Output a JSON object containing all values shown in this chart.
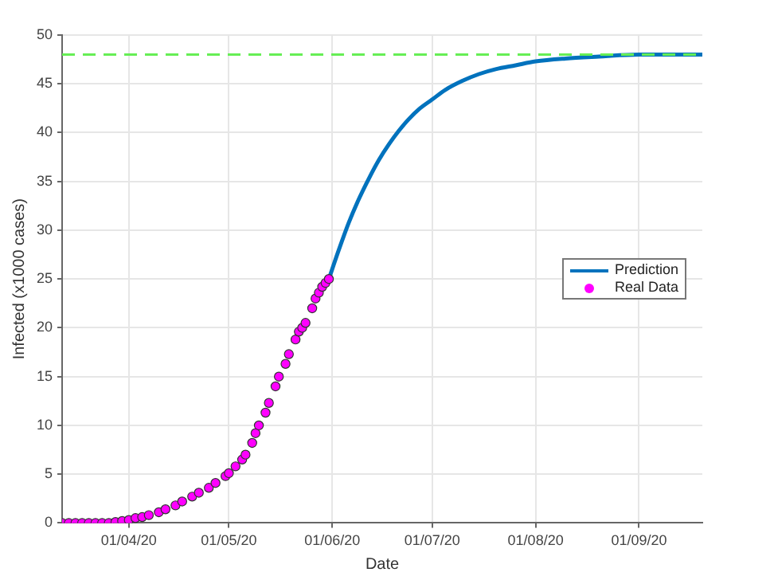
{
  "chart_data": {
    "type": "line",
    "xlabel": "Date",
    "ylabel": "Infected (x1000 cases)",
    "xlim": [
      "2020-03-12",
      "2020-09-20"
    ],
    "xticks": [
      {
        "value": "2020-04-01",
        "label": "01/04/20"
      },
      {
        "value": "2020-05-01",
        "label": "01/05/20"
      },
      {
        "value": "2020-06-01",
        "label": "01/06/20"
      },
      {
        "value": "2020-07-01",
        "label": "01/07/20"
      },
      {
        "value": "2020-08-01",
        "label": "01/08/20"
      },
      {
        "value": "2020-09-01",
        "label": "01/09/20"
      }
    ],
    "ylim": [
      0,
      50
    ],
    "yticks": [
      0,
      5,
      10,
      15,
      20,
      25,
      30,
      35,
      40,
      45,
      50
    ],
    "grid": true,
    "legend": "right",
    "ref_lines": [
      {
        "axis": "y",
        "value": 48,
        "color": "#66ee55",
        "line_style": "dashed"
      }
    ],
    "series": [
      {
        "name": "Prediction",
        "color": "#0072bd",
        "marker": "none",
        "x": [
          "2020-05-31",
          "2020-06-03",
          "2020-06-06",
          "2020-06-09",
          "2020-06-12",
          "2020-06-15",
          "2020-06-18",
          "2020-06-21",
          "2020-06-24",
          "2020-06-27",
          "2020-07-01",
          "2020-07-05",
          "2020-07-10",
          "2020-07-15",
          "2020-07-20",
          "2020-07-26",
          "2020-08-01",
          "2020-08-10",
          "2020-08-20",
          "2020-09-01",
          "2020-09-20"
        ],
        "values": [
          25,
          28,
          30.8,
          33.2,
          35.3,
          37.2,
          38.8,
          40.2,
          41.4,
          42.4,
          43.4,
          44.4,
          45.3,
          46,
          46.5,
          46.9,
          47.3,
          47.6,
          47.8,
          48,
          48
        ]
      },
      {
        "name": "Real Data",
        "type": "scatter",
        "color": "#ff00ff",
        "marker": "circle",
        "x": [
          "2020-03-12",
          "2020-03-14",
          "2020-03-16",
          "2020-03-18",
          "2020-03-20",
          "2020-03-22",
          "2020-03-24",
          "2020-03-26",
          "2020-03-28",
          "2020-03-30",
          "2020-04-01",
          "2020-04-03",
          "2020-04-05",
          "2020-04-07",
          "2020-04-10",
          "2020-04-12",
          "2020-04-15",
          "2020-04-17",
          "2020-04-20",
          "2020-04-22",
          "2020-04-25",
          "2020-04-27",
          "2020-04-30",
          "2020-05-01",
          "2020-05-03",
          "2020-05-05",
          "2020-05-06",
          "2020-05-08",
          "2020-05-09",
          "2020-05-10",
          "2020-05-12",
          "2020-05-13",
          "2020-05-15",
          "2020-05-16",
          "2020-05-18",
          "2020-05-19",
          "2020-05-21",
          "2020-05-22",
          "2020-05-23",
          "2020-05-24",
          "2020-05-26",
          "2020-05-27",
          "2020-05-28",
          "2020-05-29",
          "2020-05-30",
          "2020-05-31"
        ],
        "values": [
          0,
          0,
          0,
          0,
          0,
          0,
          0,
          0,
          0.1,
          0.2,
          0.3,
          0.5,
          0.6,
          0.8,
          1.1,
          1.4,
          1.8,
          2.2,
          2.7,
          3.1,
          3.6,
          4.1,
          4.8,
          5.1,
          5.8,
          6.5,
          7.0,
          8.2,
          9.2,
          10,
          11.3,
          12.3,
          14.0,
          15.0,
          16.3,
          17.3,
          18.8,
          19.6,
          20.0,
          20.5,
          22.0,
          23.0,
          23.6,
          24.2,
          24.6,
          25.0
        ]
      }
    ]
  }
}
